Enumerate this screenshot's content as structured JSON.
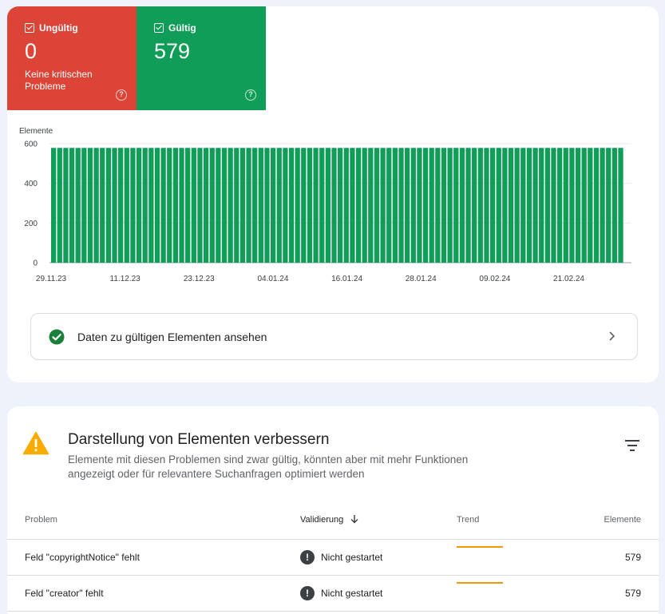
{
  "tiles": {
    "invalid": {
      "label": "Ungültig",
      "count": "0",
      "subtitle": "Keine kritischen Probleme",
      "color": "#dc4437"
    },
    "valid": {
      "label": "Gültig",
      "count": "579",
      "color": "#109d58"
    }
  },
  "chart_data": {
    "type": "bar",
    "ylabel": "Elemente",
    "ylim": [
      0,
      600
    ],
    "yticks": [
      0,
      200,
      400,
      600
    ],
    "x_tick_labels": [
      "29.11.23",
      "11.12.23",
      "23.12.23",
      "04.01.24",
      "16.01.24",
      "28.01.24",
      "09.02.24",
      "21.02.24"
    ],
    "start_date": "2023-11-29",
    "end_date": "2024-03-01",
    "series": [
      {
        "values": [
          579,
          579,
          579,
          579,
          579,
          579,
          579,
          579,
          579,
          579,
          579,
          579,
          579,
          579,
          579,
          579,
          579,
          579,
          579,
          579,
          579,
          579,
          579,
          579,
          579,
          579,
          579,
          579,
          579,
          579,
          579,
          579,
          579,
          579,
          579,
          579,
          579,
          579,
          579,
          579,
          579,
          579,
          579,
          579,
          579,
          579,
          579,
          579,
          579,
          579,
          579,
          579,
          579,
          579,
          579,
          579,
          579,
          579,
          579,
          579,
          579,
          579,
          579,
          579,
          579,
          579,
          579,
          579,
          579,
          579,
          579,
          579,
          579,
          579,
          579,
          579,
          579,
          579,
          579,
          579,
          579,
          579,
          579,
          579,
          579,
          579,
          579,
          579,
          579,
          579,
          579,
          579,
          579,
          579
        ]
      }
    ],
    "bar_color": "#109d58",
    "grid": true
  },
  "valid_link": {
    "label": "Daten zu gültigen Elementen ansehen"
  },
  "section": {
    "title": "Darstellung von Elementen verbessern",
    "description": "Elemente mit diesen Problemen sind zwar gültig, könnten aber mit mehr Funktionen angezeigt oder für relevantere Suchanfragen optimiert werden"
  },
  "table": {
    "headers": {
      "problem": "Problem",
      "validation": "Validierung",
      "trend": "Trend",
      "count": "Elemente"
    },
    "rows": [
      {
        "problem": "Feld \"copyrightNotice\" fehlt",
        "status": "Nicht gestartet",
        "count": "579"
      },
      {
        "problem": "Feld \"creator\" fehlt",
        "status": "Nicht gestartet",
        "count": "579"
      }
    ]
  },
  "colors": {
    "trend": "#f29900",
    "warning": "#f9ab00",
    "success": "#188038"
  }
}
